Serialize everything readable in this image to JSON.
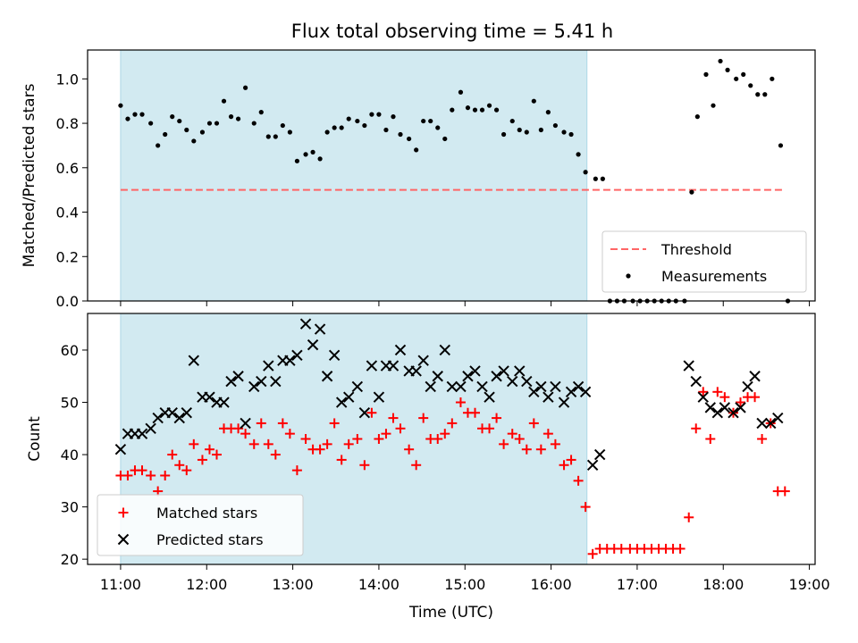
{
  "title": "Flux total observing time = 5.41 h",
  "colors": {
    "span": "#add8e6",
    "threshold": "#ff6666",
    "measurements": "#000000",
    "matched": "#ff0000",
    "predicted": "#000000"
  },
  "chart_data": [
    {
      "type": "scatter",
      "ylabel": "Matched/Predicted stars",
      "ylim": [
        0,
        1.13
      ],
      "yticks": [
        0.0,
        0.2,
        0.4,
        0.6,
        0.8,
        1.0
      ],
      "ytick_labels": [
        "0.0",
        "0.2",
        "0.4",
        "0.6",
        "0.8",
        "1.0"
      ],
      "shaded_span": [
        "11:00",
        "16:25"
      ],
      "threshold_line": {
        "name": "Threshold",
        "value": 0.5,
        "x_range": [
          "11:00",
          "18:43"
        ]
      },
      "legend": {
        "placement": "lower-right",
        "entries": [
          "Threshold",
          "Measurements"
        ]
      },
      "series": [
        {
          "name": "Measurements",
          "x": [
            "11:00",
            "11:05",
            "11:10",
            "11:15",
            "11:21",
            "11:26",
            "11:31",
            "11:36",
            "11:41",
            "11:46",
            "11:51",
            "11:57",
            "12:02",
            "12:07",
            "12:12",
            "12:17",
            "12:22",
            "12:27",
            "12:33",
            "12:38",
            "12:43",
            "12:48",
            "12:53",
            "12:58",
            "13:03",
            "13:09",
            "13:14",
            "13:19",
            "13:24",
            "13:29",
            "13:34",
            "13:39",
            "13:45",
            "13:50",
            "13:55",
            "14:00",
            "14:05",
            "14:10",
            "14:15",
            "14:21",
            "14:26",
            "14:31",
            "14:36",
            "14:41",
            "14:46",
            "14:51",
            "14:57",
            "15:02",
            "15:07",
            "15:12",
            "15:17",
            "15:22",
            "15:27",
            "15:33",
            "15:38",
            "15:43",
            "15:48",
            "15:53",
            "15:58",
            "16:03",
            "16:09",
            "16:14",
            "16:19",
            "16:24",
            "16:31",
            "16:36",
            "16:41",
            "16:46",
            "16:51",
            "16:57",
            "17:02",
            "17:07",
            "17:12",
            "17:17",
            "17:22",
            "17:27",
            "17:33",
            "17:38",
            "17:42",
            "17:48",
            "17:53",
            "17:58",
            "18:03",
            "18:09",
            "18:14",
            "18:19",
            "18:24",
            "18:29",
            "18:34",
            "18:40",
            "18:45"
          ],
          "y": [
            0.88,
            0.82,
            0.84,
            0.84,
            0.8,
            0.7,
            0.75,
            0.83,
            0.81,
            0.77,
            0.72,
            0.76,
            0.8,
            0.8,
            0.9,
            0.83,
            0.82,
            0.96,
            0.8,
            0.85,
            0.74,
            0.74,
            0.79,
            0.76,
            0.63,
            0.66,
            0.67,
            0.64,
            0.76,
            0.78,
            0.78,
            0.82,
            0.81,
            0.79,
            0.84,
            0.84,
            0.77,
            0.83,
            0.75,
            0.73,
            0.68,
            0.81,
            0.81,
            0.78,
            0.73,
            0.86,
            0.94,
            0.87,
            0.86,
            0.86,
            0.88,
            0.86,
            0.75,
            0.81,
            0.77,
            0.76,
            0.9,
            0.77,
            0.85,
            0.79,
            0.76,
            0.75,
            0.66,
            0.58,
            0.55,
            0.55,
            0.0,
            0.0,
            0.0,
            0.0,
            0.0,
            0.0,
            0.0,
            0.0,
            0.0,
            0.0,
            0.0,
            0.49,
            0.83,
            1.02,
            0.88,
            1.08,
            1.04,
            1.0,
            1.02,
            0.97,
            0.93,
            0.93,
            1.0,
            0.7,
            0.0
          ]
        }
      ]
    },
    {
      "type": "scatter",
      "xlabel": "Time (UTC)",
      "ylabel": "Count",
      "ylim": [
        19,
        67
      ],
      "yticks": [
        20,
        30,
        40,
        50,
        60
      ],
      "ytick_labels": [
        "20",
        "30",
        "40",
        "50",
        "60"
      ],
      "xticks": [
        "11:00",
        "12:00",
        "13:00",
        "14:00",
        "15:00",
        "16:00",
        "17:00",
        "18:00",
        "19:00"
      ],
      "xlim": [
        "10:37",
        "19:04"
      ],
      "shaded_span": [
        "11:00",
        "16:25"
      ],
      "legend": {
        "placement": "lower-left",
        "entries": [
          "Matched stars",
          "Predicted stars"
        ]
      },
      "series": [
        {
          "name": "Matched stars",
          "marker": "plus",
          "x": [
            "11:00",
            "11:05",
            "11:10",
            "11:15",
            "11:21",
            "11:26",
            "11:31",
            "11:36",
            "11:41",
            "11:46",
            "11:51",
            "11:57",
            "12:02",
            "12:07",
            "12:12",
            "12:17",
            "12:22",
            "12:27",
            "12:33",
            "12:38",
            "12:43",
            "12:48",
            "12:53",
            "12:58",
            "13:03",
            "13:09",
            "13:14",
            "13:19",
            "13:24",
            "13:29",
            "13:34",
            "13:39",
            "13:45",
            "13:50",
            "13:55",
            "14:00",
            "14:05",
            "14:10",
            "14:15",
            "14:21",
            "14:26",
            "14:31",
            "14:36",
            "14:41",
            "14:46",
            "14:51",
            "14:57",
            "15:02",
            "15:07",
            "15:12",
            "15:17",
            "15:22",
            "15:27",
            "15:33",
            "15:38",
            "15:43",
            "15:48",
            "15:53",
            "15:58",
            "16:03",
            "16:09",
            "16:14",
            "16:19",
            "16:24",
            "16:29",
            "16:34",
            "16:39",
            "16:44",
            "16:49",
            "16:55",
            "17:00",
            "17:05",
            "17:10",
            "17:15",
            "17:20",
            "17:25",
            "17:30",
            "17:36",
            "17:41",
            "17:46",
            "17:51",
            "17:56",
            "18:01",
            "18:07",
            "18:12",
            "18:17",
            "18:22",
            "18:27",
            "18:33",
            "18:38",
            "18:43"
          ],
          "y": [
            36,
            36,
            37,
            37,
            36,
            33,
            36,
            40,
            38,
            37,
            42,
            39,
            41,
            40,
            45,
            45,
            45,
            44,
            42,
            46,
            42,
            40,
            46,
            44,
            37,
            43,
            41,
            41,
            42,
            46,
            39,
            42,
            43,
            38,
            48,
            43,
            44,
            47,
            45,
            41,
            38,
            47,
            43,
            43,
            44,
            46,
            50,
            48,
            48,
            45,
            45,
            47,
            42,
            44,
            43,
            41,
            46,
            41,
            44,
            42,
            38,
            39,
            35,
            30,
            21,
            22,
            22,
            22,
            22,
            22,
            22,
            22,
            22,
            22,
            22,
            22,
            22,
            28,
            45,
            52,
            43,
            52,
            51,
            48,
            50,
            51,
            51,
            43,
            46,
            33,
            33
          ]
        },
        {
          "name": "Predicted stars",
          "marker": "x",
          "x": [
            "11:00",
            "11:05",
            "11:10",
            "11:15",
            "11:21",
            "11:26",
            "11:31",
            "11:36",
            "11:41",
            "11:46",
            "11:51",
            "11:57",
            "12:02",
            "12:07",
            "12:12",
            "12:17",
            "12:22",
            "12:27",
            "12:33",
            "12:38",
            "12:43",
            "12:48",
            "12:53",
            "12:58",
            "13:03",
            "13:09",
            "13:14",
            "13:19",
            "13:24",
            "13:29",
            "13:34",
            "13:39",
            "13:45",
            "13:50",
            "13:55",
            "14:00",
            "14:05",
            "14:10",
            "14:15",
            "14:21",
            "14:26",
            "14:31",
            "14:36",
            "14:41",
            "14:46",
            "14:51",
            "14:57",
            "15:02",
            "15:07",
            "15:12",
            "15:17",
            "15:22",
            "15:27",
            "15:33",
            "15:38",
            "15:43",
            "15:48",
            "15:53",
            "15:58",
            "16:03",
            "16:09",
            "16:14",
            "16:19",
            "16:24",
            "16:29",
            "16:34",
            "17:36",
            "17:41",
            "17:46",
            "17:51",
            "17:56",
            "18:01",
            "18:07",
            "18:12",
            "18:17",
            "18:22",
            "18:27",
            "18:33",
            "18:38"
          ],
          "y": [
            41,
            44,
            44,
            44,
            45,
            47,
            48,
            48,
            47,
            48,
            58,
            51,
            51,
            50,
            50,
            54,
            55,
            46,
            53,
            54,
            57,
            54,
            58,
            58,
            59,
            65,
            61,
            64,
            55,
            59,
            50,
            51,
            53,
            48,
            57,
            51,
            57,
            57,
            60,
            56,
            56,
            58,
            53,
            55,
            60,
            53,
            53,
            55,
            56,
            53,
            51,
            55,
            56,
            54,
            56,
            54,
            52,
            53,
            51,
            53,
            50,
            52,
            53,
            52,
            38,
            40,
            57,
            54,
            51,
            49,
            48,
            49,
            48,
            49,
            53,
            55,
            46,
            46,
            47
          ]
        }
      ]
    }
  ]
}
